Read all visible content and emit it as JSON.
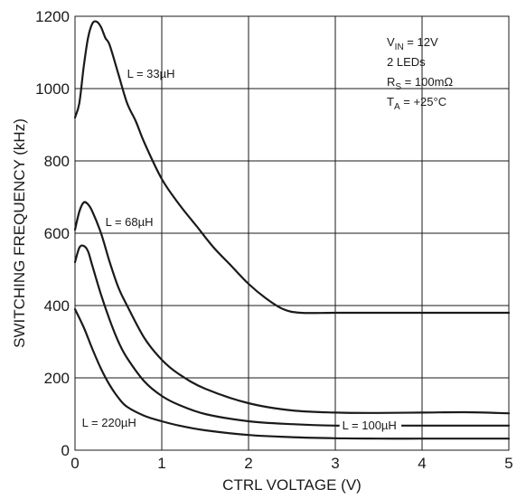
{
  "chart_data": {
    "type": "line",
    "title": "",
    "xlabel": "CTRL VOLTAGE (V)",
    "ylabel": "SWITCHING FREQUENCY (kHz)",
    "xlim": [
      0,
      5
    ],
    "ylim": [
      0,
      1200
    ],
    "x_ticks": [
      0,
      1,
      2,
      3,
      4,
      5
    ],
    "y_ticks": [
      0,
      200,
      400,
      600,
      800,
      1000,
      1200
    ],
    "grid": true,
    "conditions": {
      "vin": {
        "main": "V",
        "sub": "IN",
        "rest": " = 12V"
      },
      "leds": "2 LEDs",
      "rs": {
        "main": "R",
        "sub": "S",
        "rest": " = 100mΩ"
      },
      "ta": {
        "main": "T",
        "sub": "A",
        "rest": " = +25°C"
      }
    },
    "series": [
      {
        "name": "L = 33µH",
        "x": [
          0,
          0.05,
          0.1,
          0.15,
          0.2,
          0.25,
          0.3,
          0.35,
          0.4,
          0.5,
          0.6,
          0.7,
          0.8,
          1.0,
          1.2,
          1.4,
          1.6,
          1.8,
          2.0,
          2.2,
          2.4,
          2.6,
          3.0,
          3.5,
          4.0,
          4.5,
          5.0
        ],
        "y": [
          920,
          960,
          1060,
          1140,
          1180,
          1185,
          1170,
          1140,
          1120,
          1040,
          960,
          910,
          850,
          750,
          680,
          620,
          560,
          510,
          460,
          420,
          390,
          380,
          380,
          380,
          380,
          380,
          380
        ]
      },
      {
        "name": "L = 68µH",
        "x": [
          0,
          0.05,
          0.1,
          0.15,
          0.2,
          0.3,
          0.4,
          0.5,
          0.6,
          0.8,
          1.0,
          1.2,
          1.5,
          2.0,
          2.5,
          3.0,
          3.5,
          4.0,
          4.5,
          5.0
        ],
        "y": [
          610,
          660,
          685,
          680,
          660,
          600,
          520,
          450,
          400,
          310,
          250,
          210,
          170,
          130,
          110,
          104,
          103,
          104,
          105,
          102
        ]
      },
      {
        "name": "L = 100µH",
        "x": [
          0,
          0.05,
          0.1,
          0.15,
          0.2,
          0.3,
          0.4,
          0.5,
          0.6,
          0.8,
          1.0,
          1.2,
          1.5,
          2.0,
          2.5,
          3.0,
          3.5,
          4.0,
          4.5,
          5.0
        ],
        "y": [
          520,
          560,
          565,
          550,
          510,
          430,
          360,
          300,
          255,
          190,
          150,
          125,
          100,
          80,
          72,
          68,
          68,
          68,
          68,
          68
        ]
      },
      {
        "name": "L = 220µH",
        "x": [
          0,
          0.1,
          0.2,
          0.3,
          0.4,
          0.5,
          0.6,
          0.8,
          1.0,
          1.2,
          1.5,
          2.0,
          2.5,
          3.0,
          3.5,
          4.0,
          4.5,
          5.0
        ],
        "y": [
          390,
          340,
          280,
          225,
          180,
          145,
          120,
          95,
          80,
          68,
          55,
          42,
          36,
          33,
          32,
          32,
          32,
          32
        ]
      }
    ]
  }
}
